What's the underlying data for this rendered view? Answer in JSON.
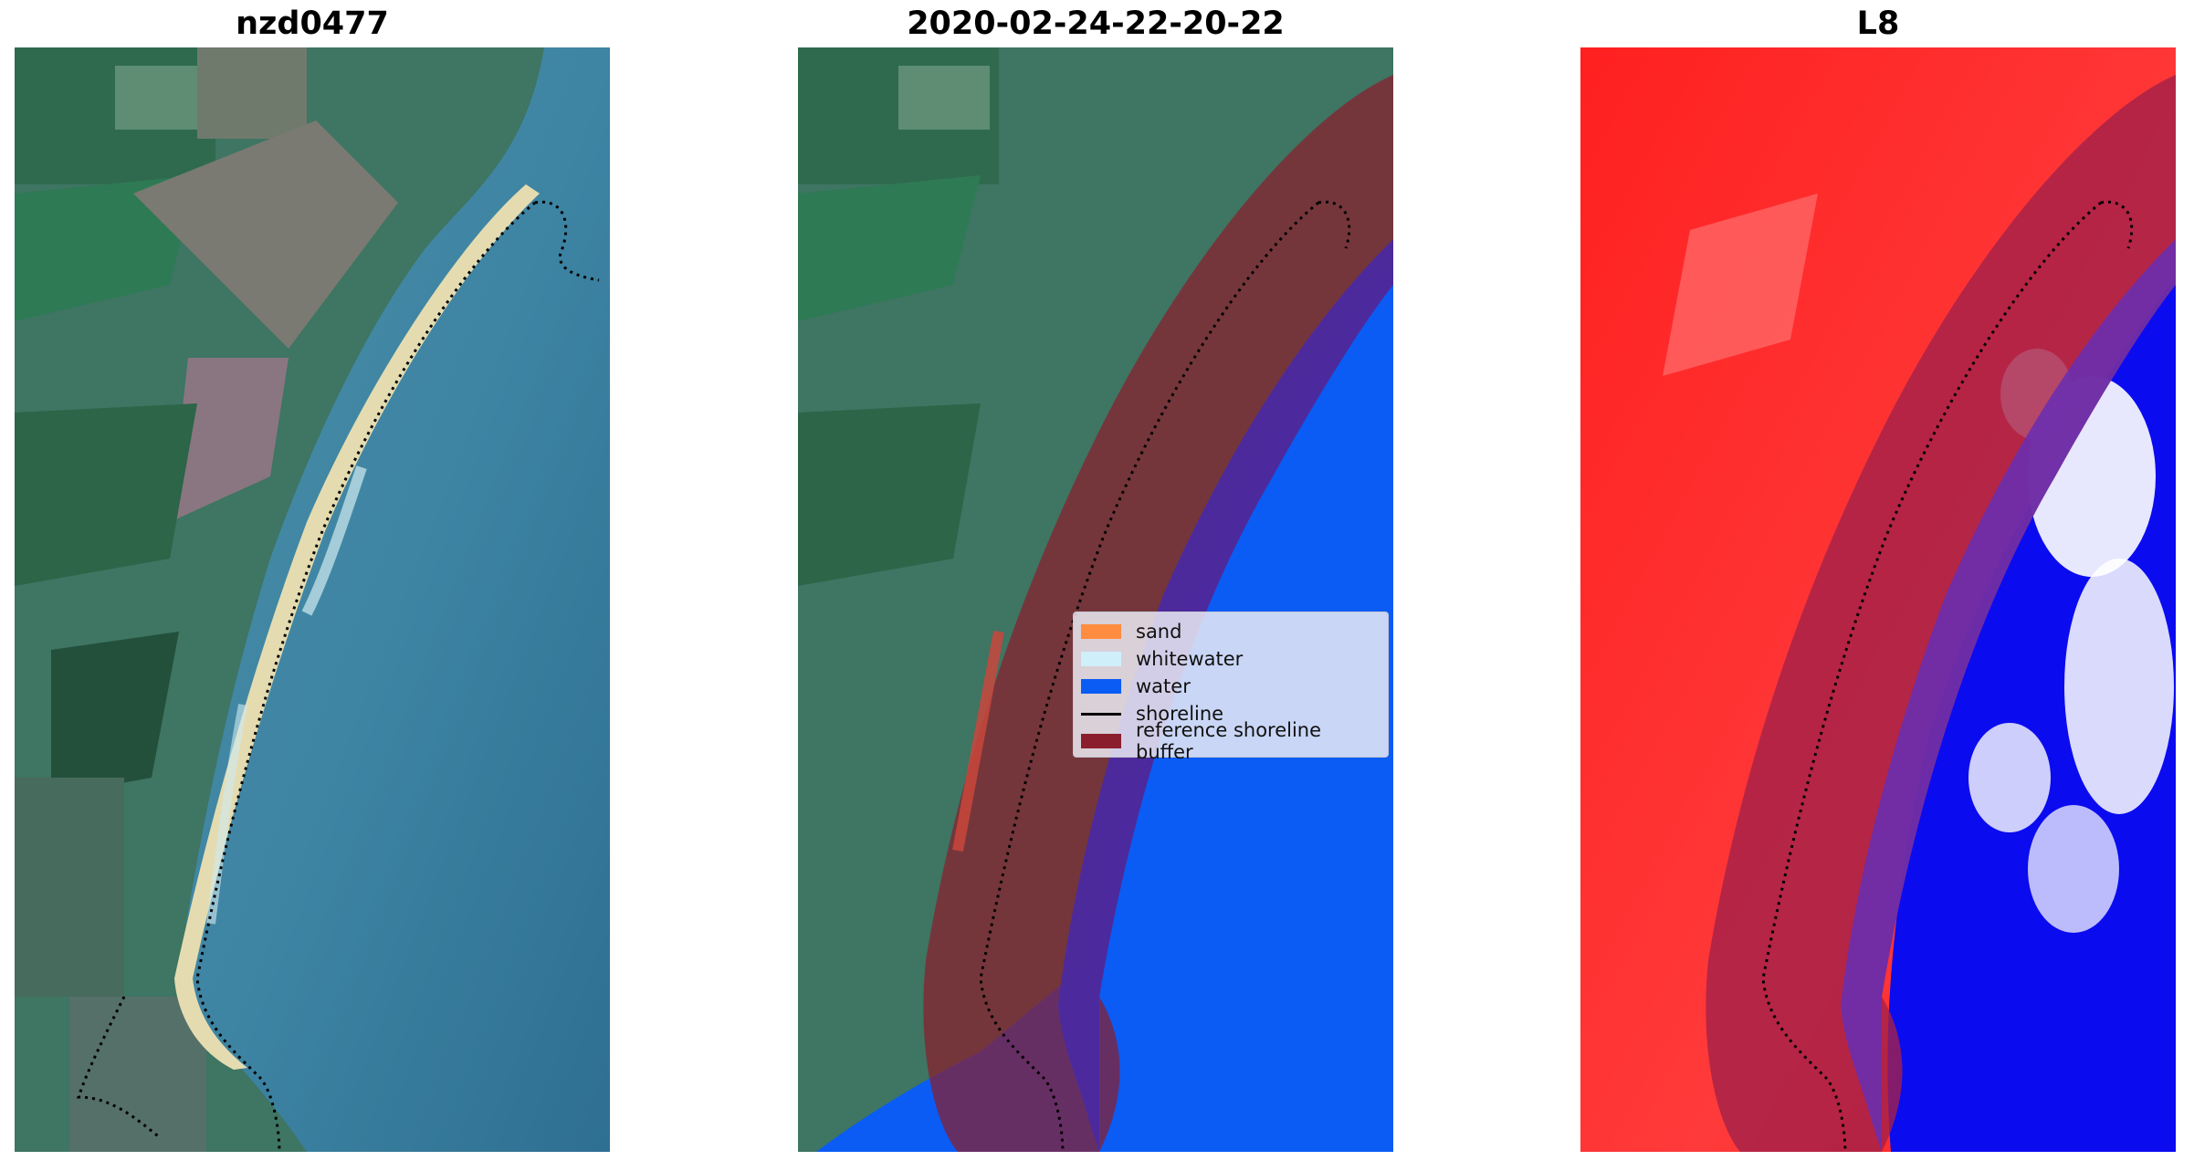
{
  "panels": [
    {
      "title": "nzd0477"
    },
    {
      "title": "2020-02-24-22-20-22"
    },
    {
      "title": "L8"
    }
  ],
  "legend": {
    "items": [
      {
        "label": "sand",
        "color": "#ff8c3f",
        "kind": "patch"
      },
      {
        "label": "whitewater",
        "color": "#cfeffb",
        "kind": "patch"
      },
      {
        "label": "water",
        "color": "#0a5cf5",
        "kind": "patch"
      },
      {
        "label": "shoreline",
        "color": "#000000",
        "kind": "line"
      },
      {
        "label": "reference shoreline buffer",
        "color": "#8b1e2d",
        "kind": "patch"
      }
    ]
  },
  "colors": {
    "buffer": "#8b1e2d",
    "water": "#0a5cf5",
    "sea": "#3f7f9f",
    "land": "#3d7a5c",
    "sand": "#e8dfb3",
    "index_red": "#ff1a1a",
    "index_blue": "#0b0bf0"
  }
}
